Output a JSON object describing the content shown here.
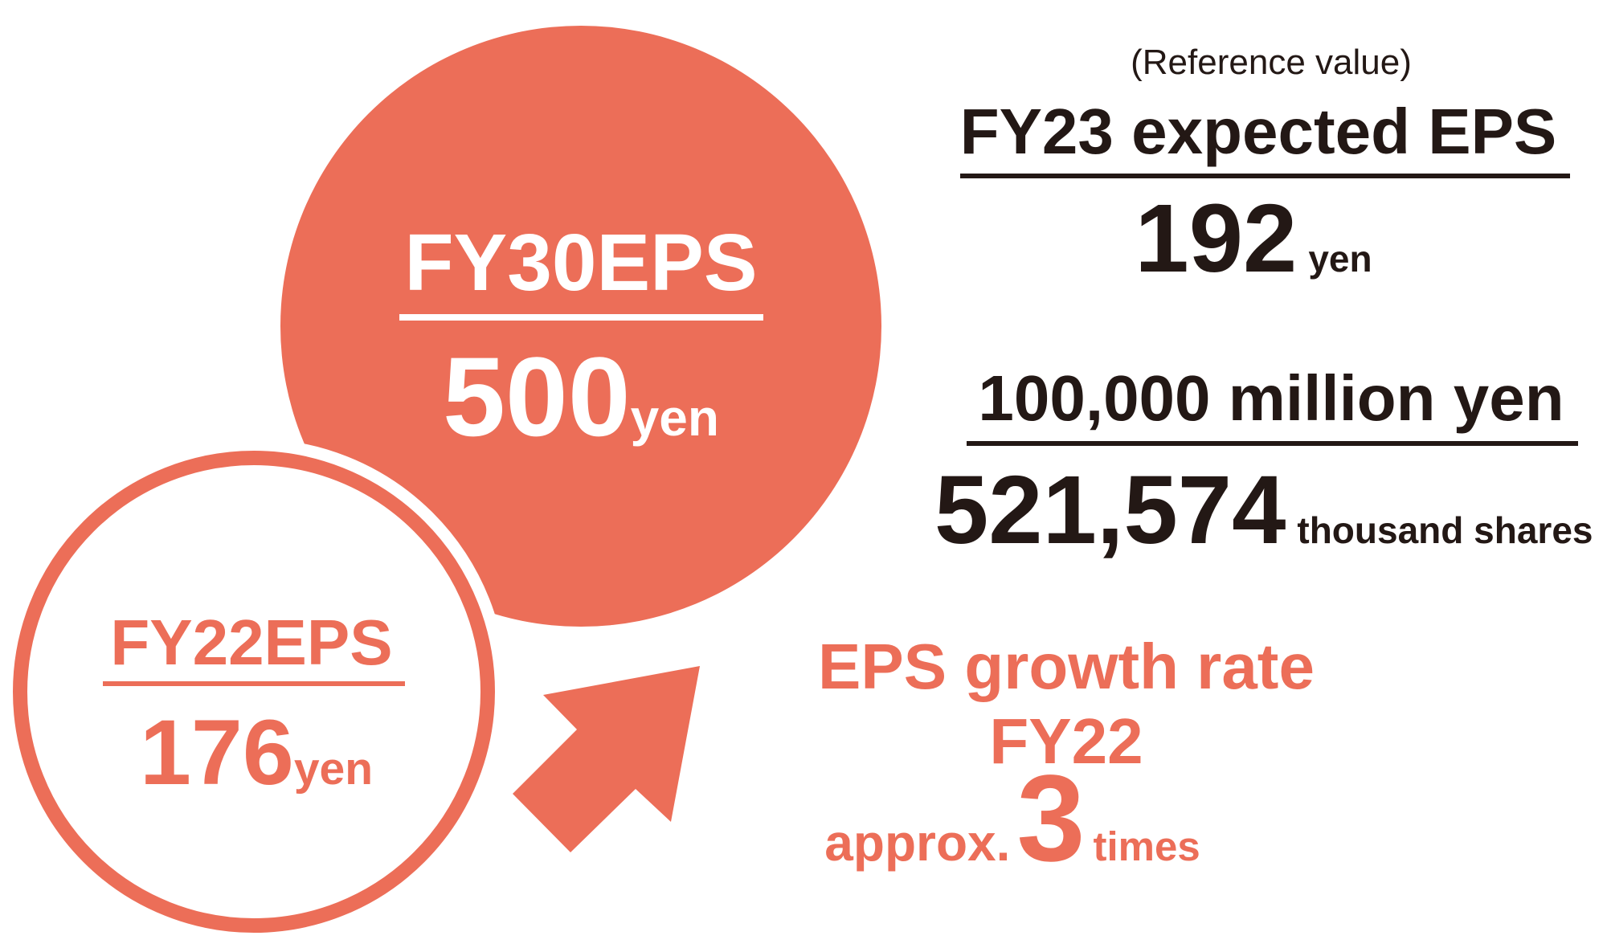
{
  "reference": {
    "note": "(Reference value)",
    "title": "FY23 expected EPS",
    "value": "192",
    "unit": "yen"
  },
  "basis": {
    "profit": "100,000 million yen",
    "shares": "521,574",
    "shares_unit": "thousand shares"
  },
  "target": {
    "label": "FY30EPS",
    "value": "500",
    "unit": "yen"
  },
  "current": {
    "label": "FY22EPS",
    "value": "176",
    "unit": "yen"
  },
  "growth": {
    "title": "EPS growth rate",
    "base": "FY22",
    "prefix": "approx.",
    "value": "3",
    "unit": "times"
  }
}
